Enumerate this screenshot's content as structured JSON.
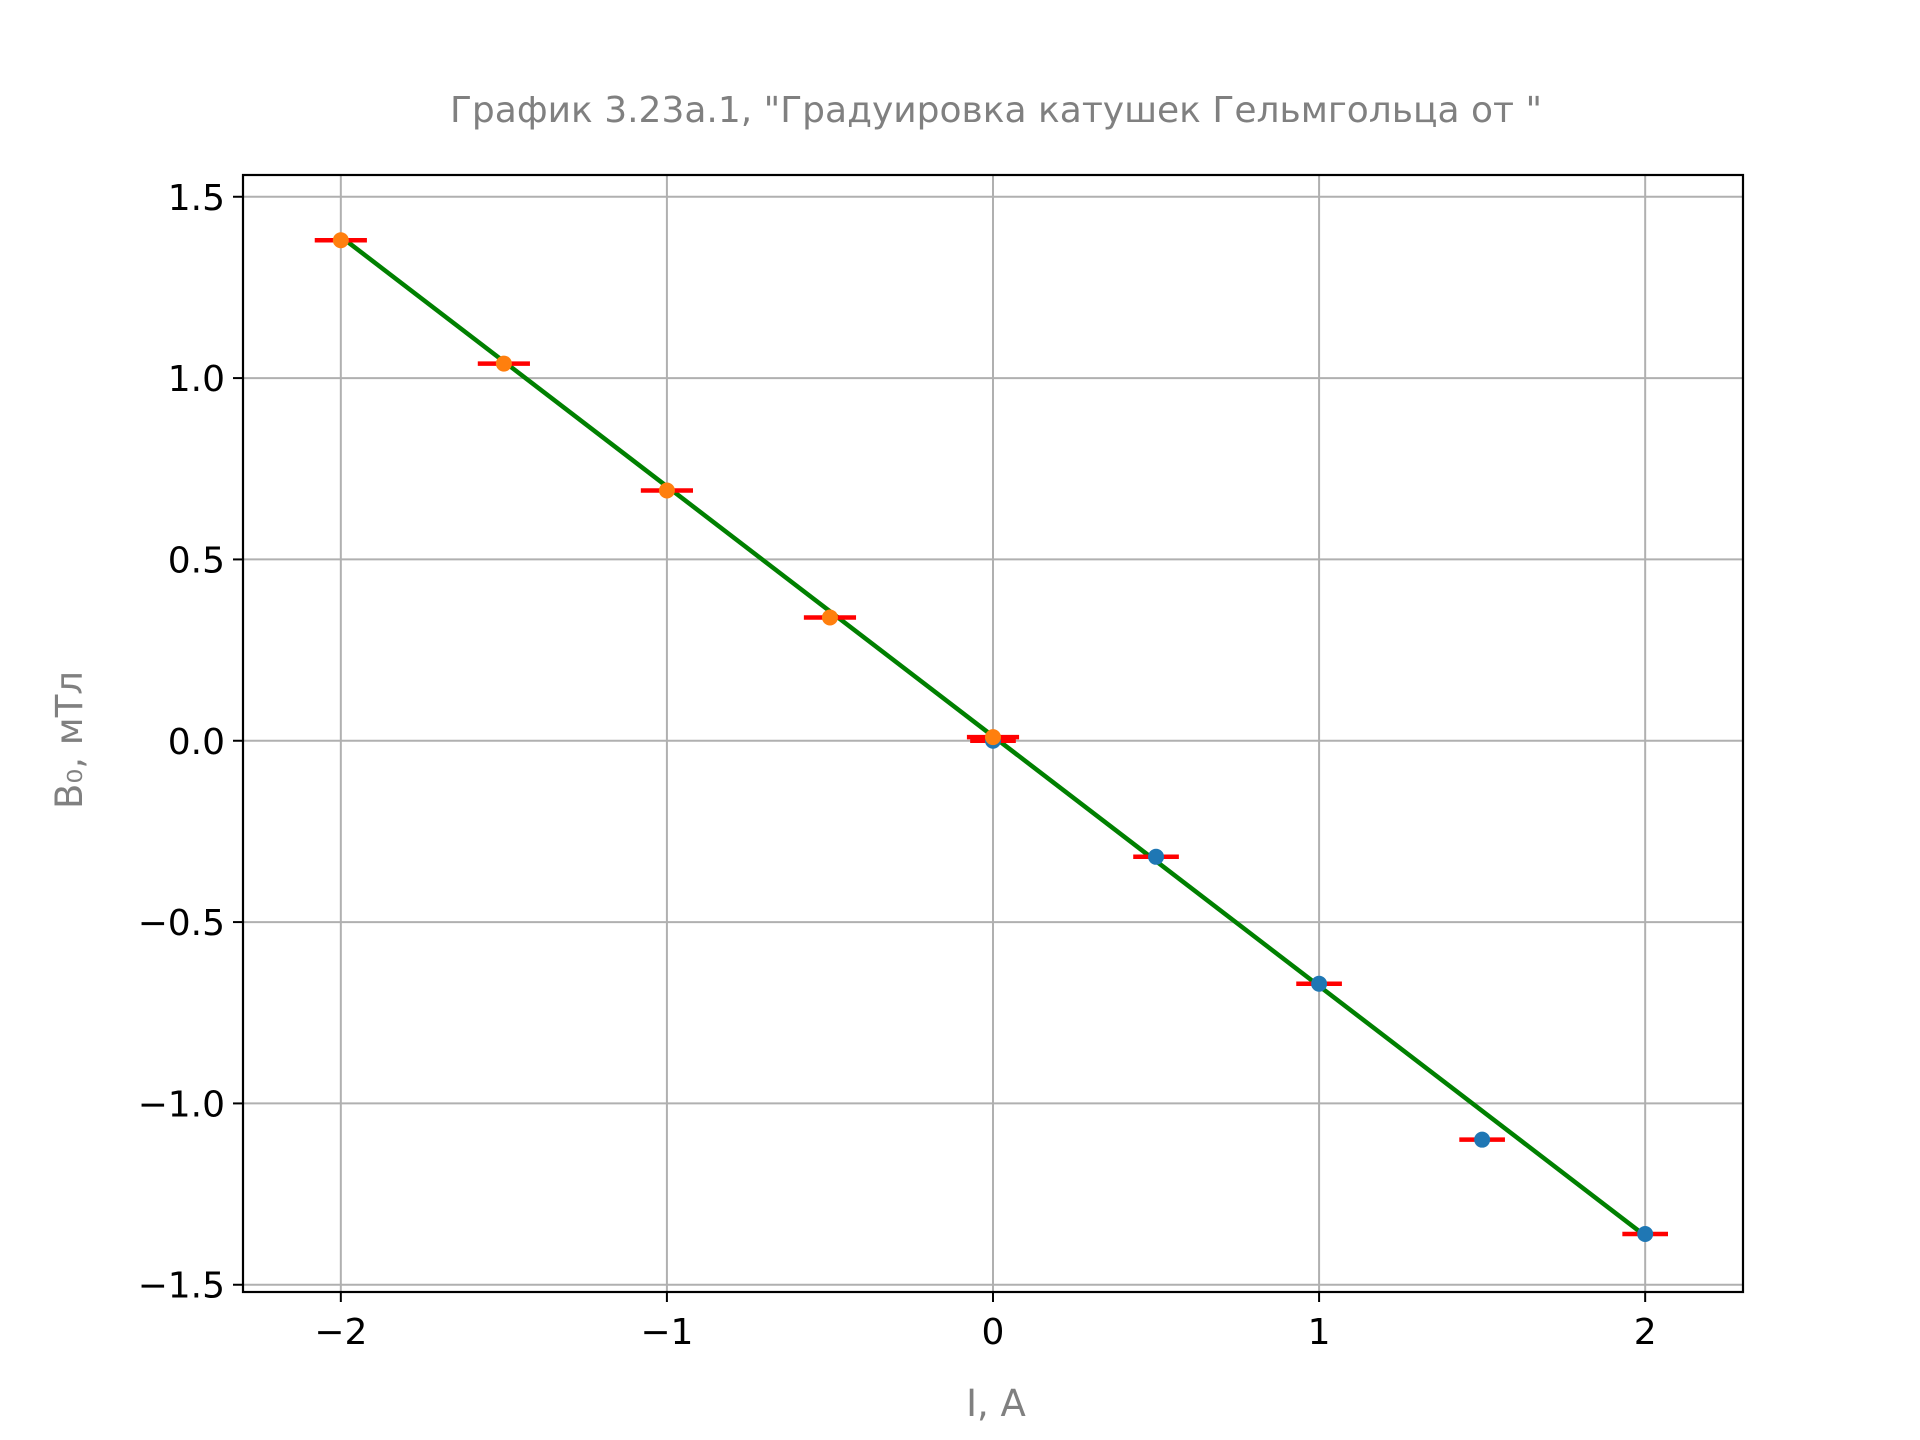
{
  "chart_data": {
    "type": "scatter",
    "title": "График 3.23а.1, \"Градуировка катушек Гельмгольца от \"",
    "xlabel": "I, A",
    "ylabel": "B₀, мТл",
    "xlim": [
      -2.3,
      2.3
    ],
    "ylim": [
      -1.52,
      1.56
    ],
    "grid": true,
    "x_ticks": [
      -2,
      -1,
      0,
      1,
      2
    ],
    "x_tick_labels": [
      "−2",
      "−1",
      "0",
      "1",
      "2"
    ],
    "y_ticks": [
      -1.5,
      -1.0,
      -0.5,
      0.0,
      0.5,
      1.0,
      1.5
    ],
    "y_tick_labels": [
      "−1.5",
      "−1.0",
      "−0.5",
      "0.0",
      "0.5",
      "1.0",
      "1.5"
    ],
    "series": [
      {
        "color": "#1f77b4",
        "points": [
          {
            "x": 0.0,
            "y": 0.0
          },
          {
            "x": 0.5,
            "y": -0.32
          },
          {
            "x": 1.0,
            "y": -0.67
          },
          {
            "x": 1.5,
            "y": -1.1
          },
          {
            "x": 2.0,
            "y": -1.36
          }
        ],
        "xerr": 0.07
      },
      {
        "color": "#ff7f0e",
        "points": [
          {
            "x": 0.0,
            "y": 0.01
          },
          {
            "x": -0.5,
            "y": 0.34
          },
          {
            "x": -1.0,
            "y": 0.69
          },
          {
            "x": -1.5,
            "y": 1.04
          },
          {
            "x": -2.0,
            "y": 1.38
          }
        ],
        "xerr": 0.08
      }
    ],
    "fit_line": {
      "x": [
        -2.0,
        2.0
      ],
      "y": [
        1.39,
        -1.365
      ],
      "color": "#008000"
    },
    "errorbar_color": "#ff0000"
  }
}
